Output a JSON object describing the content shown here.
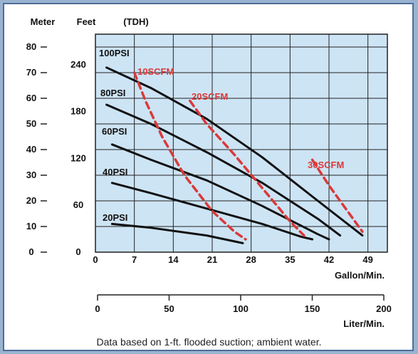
{
  "chart_data": {
    "type": "line",
    "y_axis_meter": {
      "label": "Meter",
      "ticks": [
        "0",
        "10",
        "20",
        "30",
        "40",
        "50",
        "60",
        "70",
        "80"
      ],
      "range": [
        0,
        85
      ]
    },
    "y_axis_feet": {
      "label": "Feet",
      "ticks": [
        "0",
        "60",
        "120",
        "180",
        "240"
      ],
      "range": [
        0,
        279
      ]
    },
    "tdh_label": "(TDH)",
    "x_axis_gpm": {
      "label": "Gallon/Min.",
      "ticks": [
        "0",
        "7",
        "14",
        "21",
        "28",
        "35",
        "42",
        "49"
      ],
      "range": [
        0,
        52.5
      ]
    },
    "x_axis_lpm": {
      "label": "Liter/Min.",
      "ticks": [
        "0",
        "50",
        "100",
        "150",
        "200"
      ],
      "range": [
        0,
        200
      ]
    },
    "grid": true,
    "series": [
      {
        "name": "100PSI",
        "color": "#111111",
        "dashed": false,
        "x": [
          2,
          10,
          20,
          30,
          40,
          48
        ],
        "y": [
          72,
          64,
          52,
          37,
          20,
          6.5
        ]
      },
      {
        "name": "80PSI",
        "color": "#111111",
        "dashed": false,
        "x": [
          2,
          10,
          20,
          30,
          40,
          44
        ],
        "y": [
          57.5,
          50,
          39,
          27,
          13,
          6.5
        ]
      },
      {
        "name": "60PSI",
        "color": "#111111",
        "dashed": false,
        "x": [
          3,
          10,
          20,
          30,
          40,
          42
        ],
        "y": [
          42,
          36,
          28,
          18,
          7,
          5
        ]
      },
      {
        "name": "40PSI",
        "color": "#111111",
        "dashed": false,
        "x": [
          3,
          10,
          20,
          30,
          37,
          39
        ],
        "y": [
          27,
          23,
          17,
          11,
          6,
          5
        ]
      },
      {
        "name": "20PSI",
        "color": "#111111",
        "dashed": false,
        "x": [
          3,
          10,
          20,
          26.5
        ],
        "y": [
          11,
          9.5,
          6.5,
          3.5
        ]
      },
      {
        "name": "10SCFM",
        "color": "#d93a3a",
        "dashed": true,
        "x": [
          7,
          9,
          12,
          16,
          21,
          25,
          27
        ],
        "y": [
          70,
          59,
          45,
          30,
          16,
          8,
          5
        ]
      },
      {
        "name": "20SCFM",
        "color": "#d93a3a",
        "dashed": true,
        "x": [
          17,
          20,
          25,
          30,
          35,
          37.5
        ],
        "y": [
          59,
          50,
          38,
          25,
          12,
          6.5
        ]
      },
      {
        "name": "30SCFM",
        "color": "#d93a3a",
        "dashed": true,
        "x": [
          39,
          42,
          45,
          48
        ],
        "y": [
          36,
          26,
          17,
          8
        ]
      }
    ],
    "annotations": [
      "100PSI",
      "80PSI",
      "60PSI",
      "40PSI",
      "20PSI",
      "10SCFM",
      "20SCFM",
      "30SCFM"
    ]
  },
  "colors": {
    "plot_bg": "#cde4f4",
    "grid": "#222222",
    "frame": "#4e6e99",
    "outer_bg": "#9ab3d0",
    "scfm": "#d93a3a"
  },
  "footnote": "Data based on 1-ft. flooded suction; ambient water."
}
